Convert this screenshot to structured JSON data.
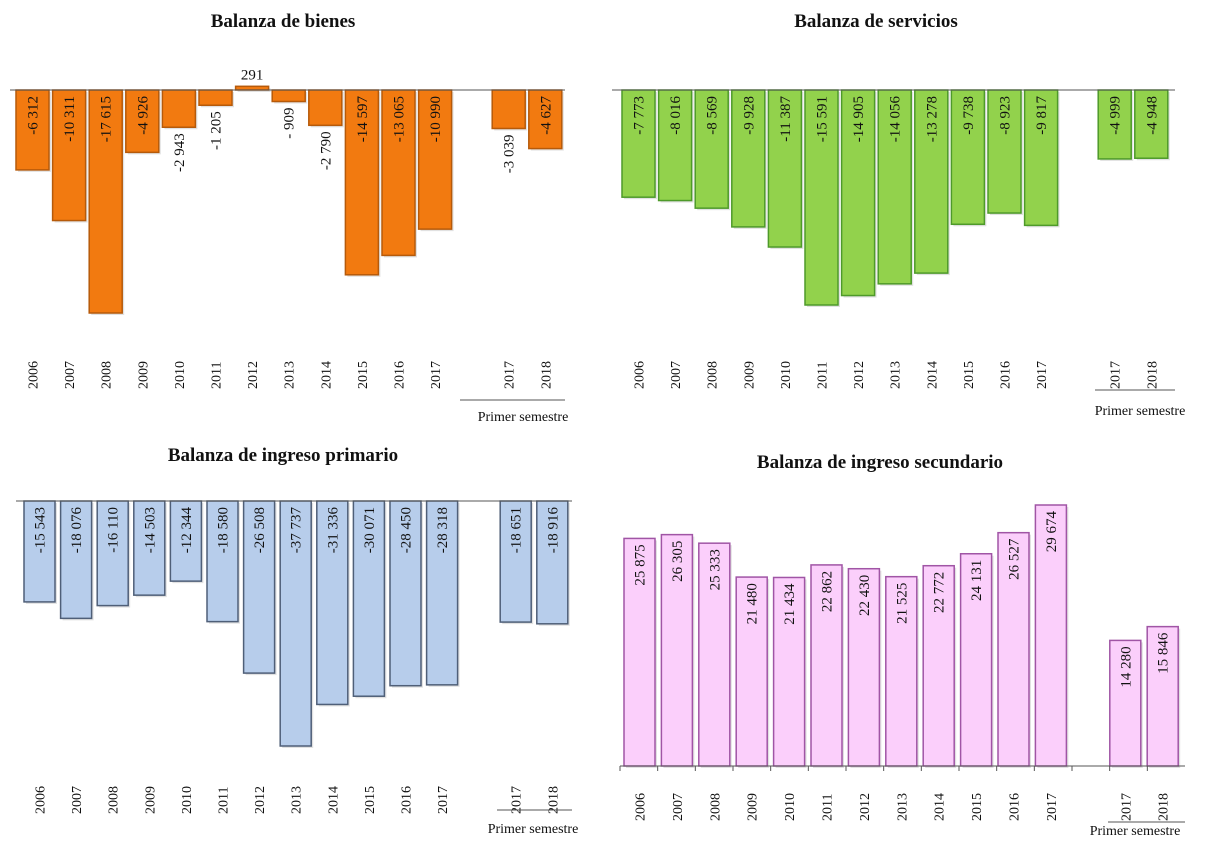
{
  "chart_data": [
    {
      "type": "bar",
      "title": "Balanza de bienes",
      "categories": [
        "2006",
        "2007",
        "2008",
        "2009",
        "2010",
        "2011",
        "2012",
        "2013",
        "2014",
        "2015",
        "2016",
        "2017",
        "2017",
        "2018"
      ],
      "values": [
        -6312,
        -10311,
        -17615,
        -4926,
        -2943,
        -1205,
        291,
        -909,
        -2790,
        -14597,
        -13065,
        -10990,
        -3039,
        -4627
      ],
      "labels": [
        "-6 312",
        "-10 311",
        "-17 615",
        "-4 926",
        "-2 943",
        "-1 205",
        "291",
        "- 909",
        "-2 790",
        "-14 597",
        "-13 065",
        "-10 990",
        "-3 039",
        "-4 627"
      ],
      "group_label": "Primer semestre",
      "fill": "#f27a10",
      "stroke": "#b65a0a"
    },
    {
      "type": "bar",
      "title": "Balanza de servicios",
      "categories": [
        "2006",
        "2007",
        "2008",
        "2009",
        "2010",
        "2011",
        "2012",
        "2013",
        "2014",
        "2015",
        "2016",
        "2017",
        "2017",
        "2018"
      ],
      "values": [
        -7773,
        -8016,
        -8569,
        -9928,
        -11387,
        -15591,
        -14905,
        -14056,
        -13278,
        -9738,
        -8923,
        -9817,
        -4999,
        -4948
      ],
      "labels": [
        "-7 773",
        "-8 016",
        "-8 569",
        "-9 928",
        "-11 387",
        "-15 591",
        "-14 905",
        "-14 056",
        "-13 278",
        "-9 738",
        "-8 923",
        "-9 817",
        "-4 999",
        "-4 948"
      ],
      "group_label": "Primer semestre",
      "fill": "#92d24c",
      "stroke": "#4e9a2a"
    },
    {
      "type": "bar",
      "title": "Balanza de ingreso primario",
      "categories": [
        "2006",
        "2007",
        "2008",
        "2009",
        "2010",
        "2011",
        "2012",
        "2013",
        "2014",
        "2015",
        "2016",
        "2017",
        "2017",
        "2018"
      ],
      "values": [
        -15543,
        -18076,
        -16110,
        -14503,
        -12344,
        -18580,
        -26508,
        -37737,
        -31336,
        -30071,
        -28450,
        -28318,
        -18651,
        -18916
      ],
      "labels": [
        "-15 543",
        "-18 076",
        "-16 110",
        "-14 503",
        "-12 344",
        "-18 580",
        "-26 508",
        "-37 737",
        "-31 336",
        "-30 071",
        "-28 450",
        "-28 318",
        "-18 651",
        "-18 916"
      ],
      "group_label": "Primer semestre",
      "fill": "#b7cdeb",
      "stroke": "#4f5f78"
    },
    {
      "type": "bar",
      "title": "Balanza de ingreso secundario",
      "categories": [
        "2006",
        "2007",
        "2008",
        "2009",
        "2010",
        "2011",
        "2012",
        "2013",
        "2014",
        "2015",
        "2016",
        "2017",
        "2017",
        "2018"
      ],
      "values": [
        25875,
        26305,
        25333,
        21480,
        21434,
        22862,
        22430,
        21525,
        22772,
        24131,
        26527,
        29674,
        14280,
        15846
      ],
      "labels": [
        "25 875",
        "26 305",
        "25 333",
        "21 480",
        "21 434",
        "22 862",
        "22 430",
        "21 525",
        "22 772",
        "24 131",
        "26 527",
        "29 674",
        "14 280",
        "15 846"
      ],
      "group_label": "Primer semestre",
      "fill": "#fbcffb",
      "stroke": "#a055a5"
    }
  ]
}
